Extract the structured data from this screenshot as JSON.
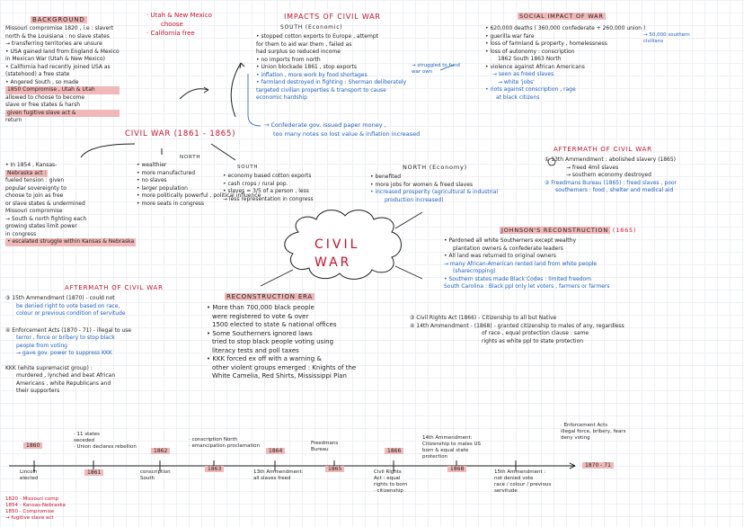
{
  "background": {
    "heading": "BACKGROUND",
    "lines": [
      "Missouri compromise 1820 , i.e : slavert",
      "north & the Louisiana : no slave states",
      "→ transferring territories are unsure",
      "• USA gained land from England & Mexico",
      "in Mexican War (Utah & New Mexico)",
      "• California had recently joined USA as",
      "(statehood) a free state",
      "• Angered South , so made",
      "1850 Compromise , Utah & Utah",
      "allowed to choose to become",
      "slave or free states & harsh",
      "given fugitive slave act &",
      "return"
    ]
  },
  "utah_note": {
    "lines": [
      "· Utah & New Mexico",
      "choose",
      "· California free"
    ]
  },
  "kansas": {
    "lines": [
      "• In 1854 , Kansas-",
      "Nebraska act :",
      "fueled tension : given",
      "popular sovereignty to",
      "choose to join as free",
      "or slave states & undermined",
      "Missouri compromise",
      "→ South & north fighting each",
      "growing states limit power",
      "in congress",
      "• escalated struggle within Kansas & Nebraska"
    ]
  },
  "civil_war_title": "CIVIL WAR (1861 - 1865)",
  "north": {
    "heading": "NORTH",
    "lines": [
      "• wealthier",
      "• more manufactured",
      "• no slaves",
      "• larger population",
      "• more politically powerful , political influence",
      "• more seats in congress"
    ]
  },
  "south": {
    "heading": "SOUTH",
    "lines": [
      "• economy based cotton exports",
      "• cash crops / rural pop.",
      "• slaves = 3/5 of a person , less",
      "→ less representation in congress"
    ]
  },
  "impacts": {
    "heading": "IMPACTS OF CIVIL WAR",
    "south_econ": "SOUTH (Economic)",
    "lines": [
      "• stopped cotton exports to Europe , attempt",
      "for them to aid war them , failed as",
      "had surplus so reduced income",
      "• no imports from north",
      "• Union blockade 1861 , stop exports",
      "• inflation , more work by food shortages",
      "• farmland destroyed in fighting : Sherman deliberately",
      "targeted civilian properties & transport to cause",
      "economic hardship"
    ],
    "struggled_note": "→ struggled to fund\nwar own",
    "confederate_lines": [
      "→ Confederate gov. issued paper money ,",
      "too many notes so lost value & inflation increased"
    ]
  },
  "north_econ": {
    "heading": "NORTH (Economy)",
    "lines": [
      "• benefited",
      "• more jobs for women & freed slaves",
      "• increased prosperity (agricultural & industrial",
      "production increased)"
    ]
  },
  "social": {
    "heading": "SOCIAL IMPACT OF WAR",
    "lines": [
      "• 620,000 deaths  ( 360,000 confederate + 260,000 union )",
      "• guerilla war fare",
      "• loss of farmland & property , homelessness",
      "• loss of autonomy : conscription",
      "1862 South  1863 North",
      "• violence against African Americans",
      "→ seen as freed slaves",
      "→ white 'jobs'",
      "• riots against conscription , rage",
      "at black citizens"
    ],
    "southern_civilians": "→ 50,000 southern\ncivilians"
  },
  "aftermath1": {
    "heading": "AFTERMATH OF CIVIL WAR",
    "lines": [
      "① 13th Ammendment : abolished slavery (1865)",
      "→ freed 4mil slaves",
      "→ southern economy destroyed",
      "② Freedmans Bureau (1865) : freed slaves , poor",
      "southerners : food , shelter and medical aid"
    ]
  },
  "johnson": {
    "heading": "JOHNSON'S RECONSTRUCTION",
    "year": "(1865)",
    "lines": [
      "• Pardoned all white Southerners except wealthy",
      "plantation owners & confederate leaders",
      "• All land was returned to original owners",
      "→ many African-American rented land from white people",
      "(sharecropping)",
      "• Southern states made Black Codes : limited freedom",
      "South Carolina : Black ppl only let voters , farmers or farmers"
    ]
  },
  "cloud": "CIVIL\nWAR",
  "aftermath2": {
    "heading": "AFTERMATH OF CIVIL WAR",
    "lines": [
      "③ 15th Ammendment (1870) - could not",
      "be denied right to vote based on race,",
      "colour or previous condition of servitude",
      "④ Enforcement Acts (1870 - 71) - illegal to use",
      "terror , force or bribery to stop black",
      "people from voting",
      "→ gave gov. power to suppress KKK",
      "KKK (white supremacist group) :",
      "murdered , lynched and beat African",
      "Americans , white Republicans and",
      "their supporters"
    ]
  },
  "reconstruction": {
    "heading": "RECONSTRUCTION ERA",
    "lines": [
      "• More than 700,000 black people",
      "were registered to vote & over",
      "1500 elected to state & national offices",
      "• Some Southerners ignored laws",
      "tried to stop black people voting using",
      "literacy tests and poll taxes",
      "• KKK forced ex off with a warning &",
      "other violent groups emerged : Knights of the",
      "White Camelia, Red Shirts, Mississippi Plan"
    ]
  },
  "civil_rights": {
    "lines": [
      "③ Civil Rights Act (1866) - Citizenship to all but Native",
      "④ 14th Ammendment - (1868) - granted citizenship to males of any, regardless",
      "of race , equal protection clause : same",
      "rights as white ppl to state protection"
    ]
  },
  "timeline": {
    "above": [
      {
        "year": "1860",
        "label": ""
      },
      {
        "year": "",
        "label": "· 11 states\nseceded\n· Union declares rebellion"
      },
      {
        "year": "1862",
        "label": "· conscription North\n· emancipation proclamation"
      },
      {
        "year": "1864",
        "label": ""
      },
      {
        "year": "",
        "label": "Freedmans\nBureau"
      },
      {
        "year": "1866",
        "label": ""
      },
      {
        "year": "",
        "label": "14th Ammendment:\nCitizenship to males US\nborn & equal state\nprotection"
      },
      {
        "year": "",
        "label": "· Enforcement Acts\nillegal force, bribery, fears\ndeny voting"
      }
    ],
    "below": [
      {
        "year": "",
        "label": "Lincoln\nelected"
      },
      {
        "year": "1861",
        "label": ""
      },
      {
        "year": "",
        "label": "conscription\nSouth"
      },
      {
        "year": "1863",
        "label": ""
      },
      {
        "year": "",
        "label": "13th Ammendment:\nall slaves freed"
      },
      {
        "year": "1865",
        "label": ""
      },
      {
        "year": "",
        "label": "Civil Rights\nAct : equal\nrights to born\n· citizenship"
      },
      {
        "year": "1868",
        "label": ""
      },
      {
        "year": "",
        "label": "15th Ammendment :\nnot denied vote\nrace / colour / previous\nservitude"
      },
      {
        "year": "1870 - 71",
        "label": ""
      }
    ],
    "end_marker": "1870 - 71"
  },
  "corner_notes": {
    "lines": [
      "1820 - Missouri comp",
      "1854 - Kansas-Nebraska",
      "1850 - Compromise",
      "→ fugitive slave act"
    ]
  }
}
